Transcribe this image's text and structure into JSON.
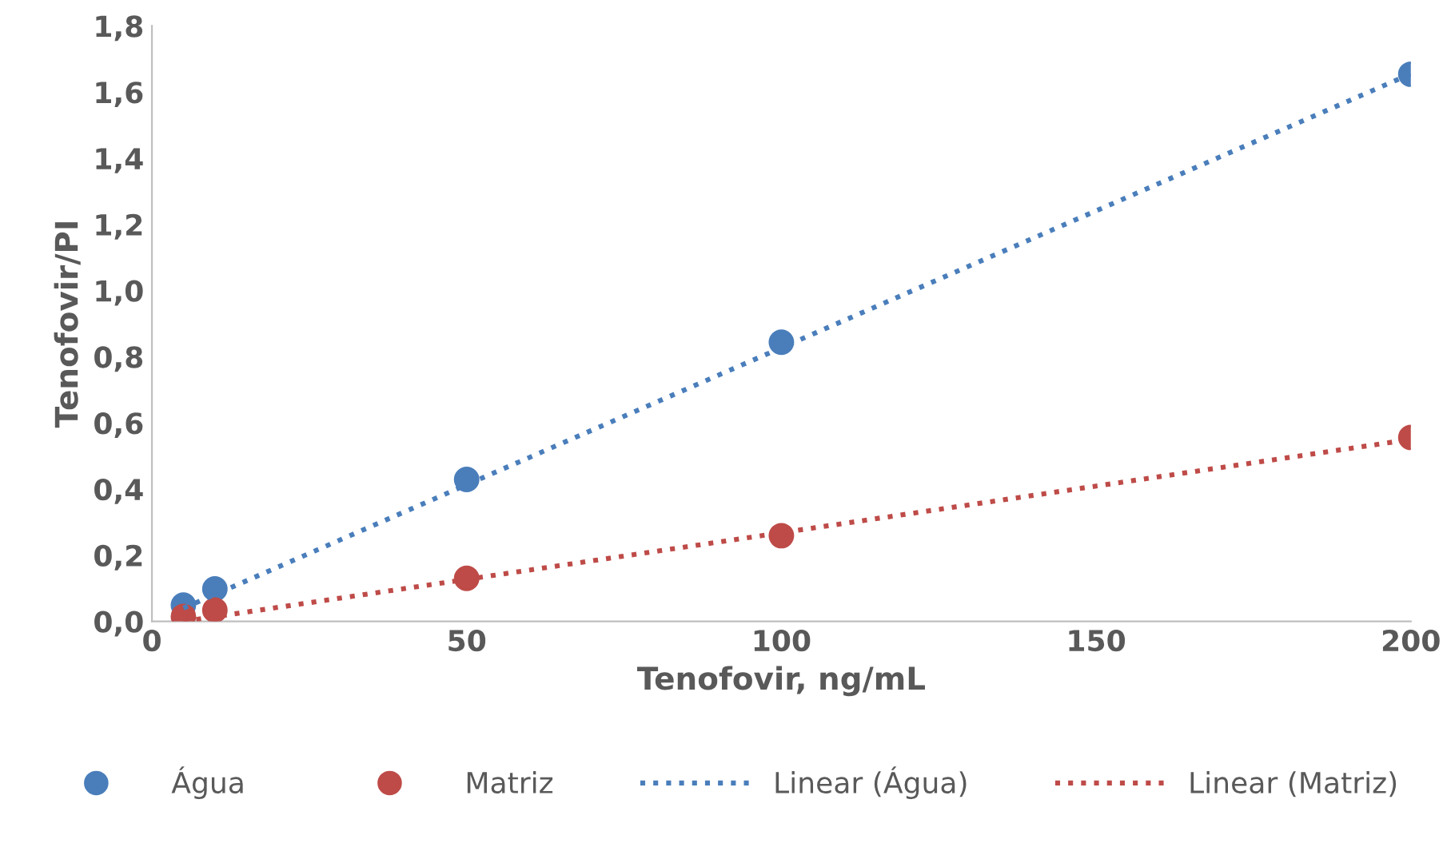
{
  "chart_data": {
    "type": "scatter",
    "xlabel": "Tenofovir, ng/mL",
    "ylabel": "Tenofovir/PI",
    "xlim": [
      0,
      200
    ],
    "xticks": [
      0,
      50,
      100,
      150,
      200
    ],
    "ylim": [
      0,
      1.8
    ],
    "yticks": [
      {
        "value": 0,
        "label": "0,0"
      },
      {
        "value": 0.2,
        "label": "0,2"
      },
      {
        "value": 0.4,
        "label": "0,4"
      },
      {
        "value": 0.6,
        "label": "0,6"
      },
      {
        "value": 0.8,
        "label": "0,8"
      },
      {
        "value": 1.0,
        "label": "1,0"
      },
      {
        "value": 1.2,
        "label": "1,2"
      },
      {
        "value": 1.4,
        "label": "1,4"
      },
      {
        "value": 1.6,
        "label": "1,6"
      },
      {
        "value": 1.8,
        "label": "1,8"
      }
    ],
    "x": [
      5,
      10,
      50,
      100,
      200
    ],
    "grid": false,
    "legend": "bottom",
    "series": [
      {
        "name": "Água",
        "color": "#4a7ebb",
        "marker": "circle",
        "values": [
          0.049,
          0.098,
          0.429,
          0.844,
          1.654
        ]
      },
      {
        "name": "Matriz",
        "color": "#be4b48",
        "marker": "circle",
        "values": [
          0.015,
          0.034,
          0.13,
          0.259,
          0.556
        ]
      },
      {
        "name": "Linear (Água)",
        "type": "line",
        "line_style": "dotted",
        "marker": "none",
        "color": "#4a7ebb",
        "values": [
          0.04,
          0.081,
          0.413,
          0.827,
          1.655
        ]
      },
      {
        "name": "Linear (Matriz)",
        "type": "line",
        "line_style": "dotted",
        "marker": "none",
        "color": "#be4b48",
        "values": [
          0.0,
          0.014,
          0.127,
          0.268,
          0.55
        ]
      }
    ]
  }
}
